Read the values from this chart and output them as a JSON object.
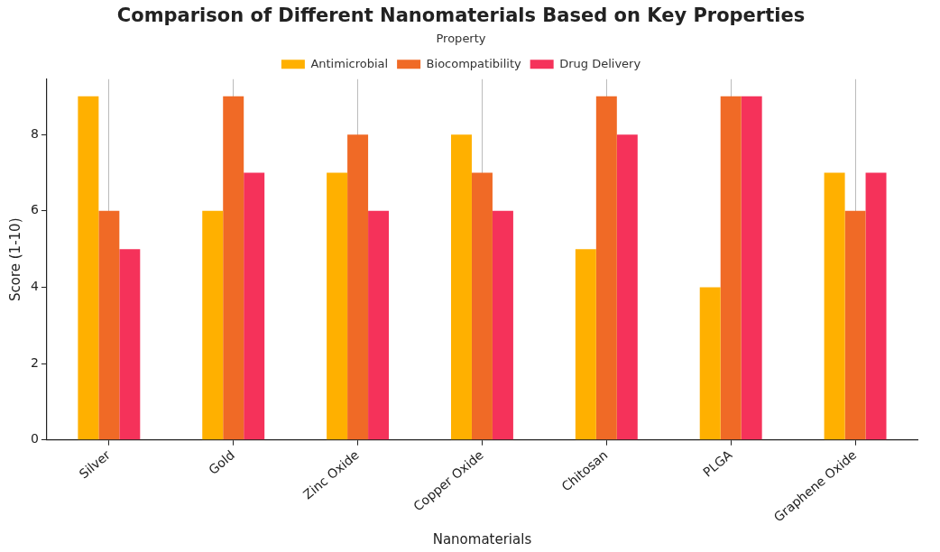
{
  "chart_data": {
    "type": "bar",
    "title": "Comparison of Different Nanomaterials Based on Key Properties",
    "xlabel": "Nanomaterials",
    "ylabel": "Score (1-10)",
    "legend_title": "Property",
    "categories": [
      "Silver",
      "Gold",
      "Zinc Oxide",
      "Copper Oxide",
      "Chitosan",
      "PLGA",
      "Graphene Oxide"
    ],
    "series": [
      {
        "name": "Antimicrobial",
        "color": "#ffb000",
        "values": [
          9,
          6,
          7,
          8,
          5,
          4,
          7
        ]
      },
      {
        "name": "Biocompatibility",
        "color": "#f06a26",
        "values": [
          6,
          9,
          8,
          7,
          9,
          9,
          6
        ]
      },
      {
        "name": "Drug Delivery",
        "color": "#f5325a",
        "values": [
          5,
          7,
          6,
          6,
          8,
          9,
          7
        ]
      }
    ],
    "ylim": [
      0,
      9.45
    ],
    "yticks": [
      0,
      2,
      4,
      6,
      8
    ],
    "grid": "x",
    "legend": "top"
  }
}
